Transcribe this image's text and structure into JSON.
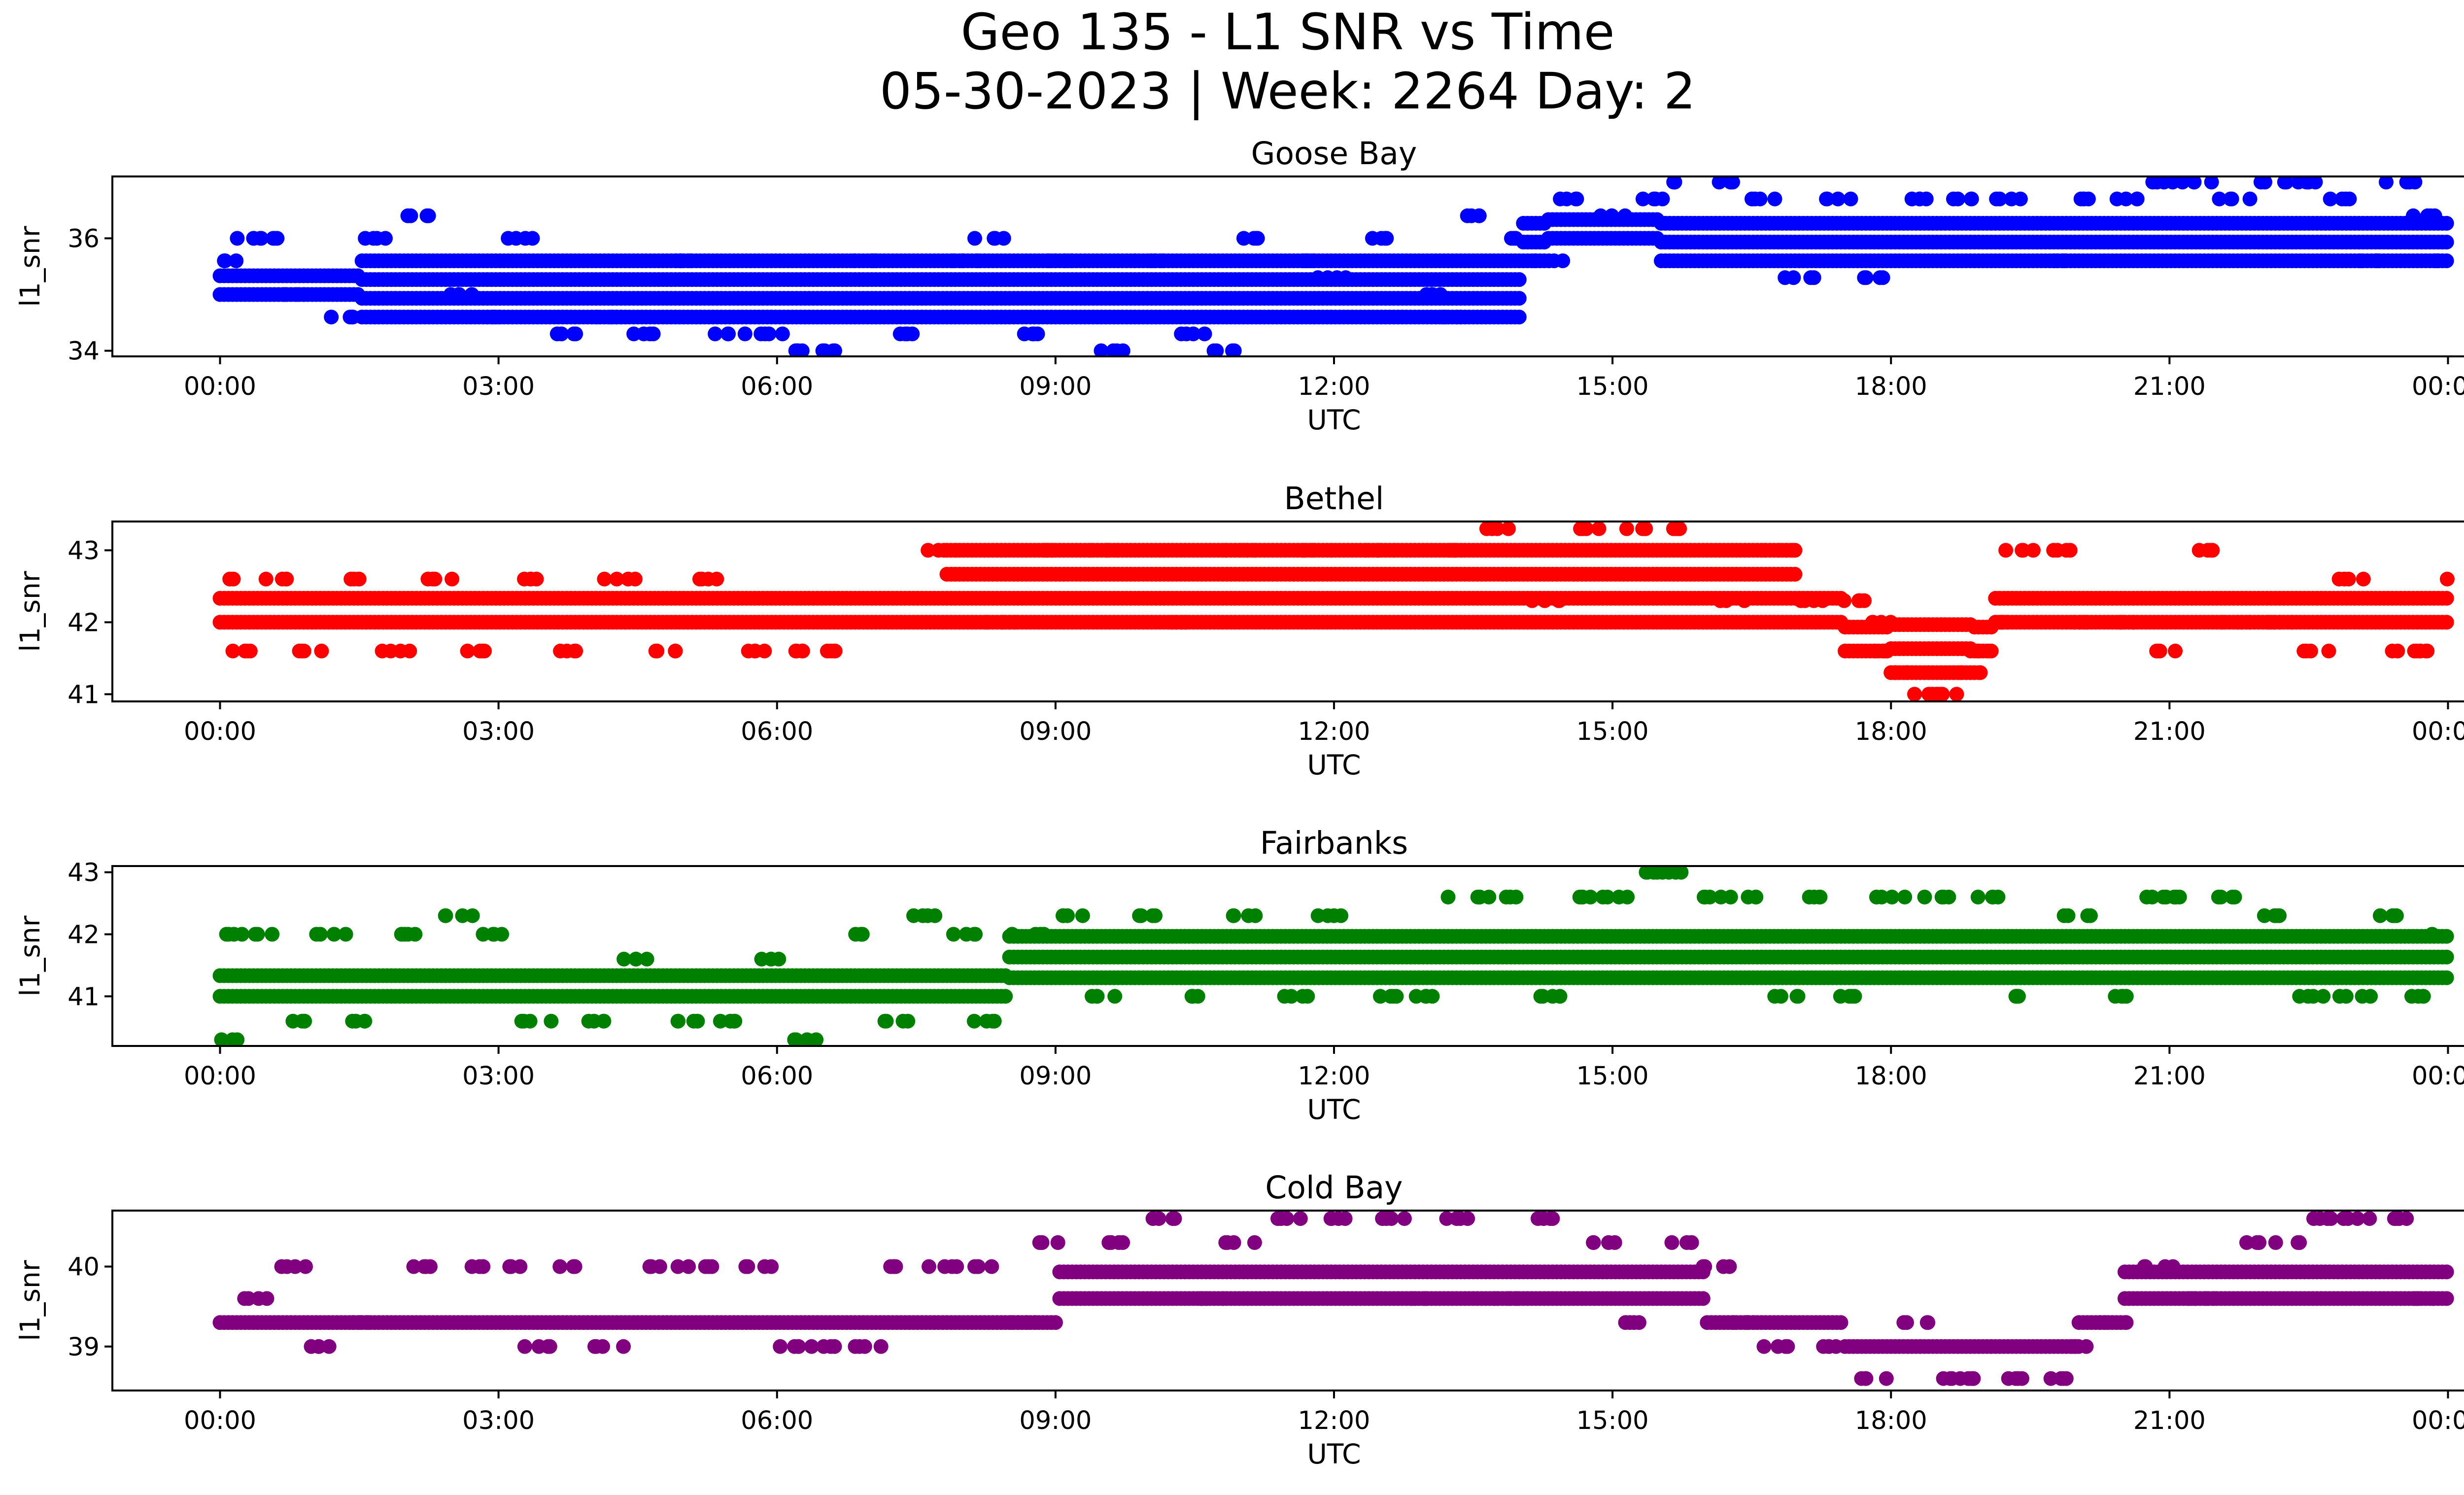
{
  "figure": {
    "title_line1": "Geo 135 - L1 SNR vs Time",
    "title_line2": "05-30-2023 | Week: 2264 Day: 2"
  },
  "chart_data": [
    {
      "type": "scatter",
      "title": "Goose Bay",
      "xlabel": "UTC",
      "ylabel": "l1_snr",
      "color": "#0000ff",
      "xlim_hours": [
        -1.16,
        25.16
      ],
      "ylim": [
        33.9,
        37.1
      ],
      "yticks": [
        34,
        36
      ],
      "xtick_labels": [
        "00:00",
        "03:00",
        "06:00",
        "09:00",
        "12:00",
        "15:00",
        "18:00",
        "21:00",
        "00:00"
      ],
      "series": [
        {
          "values": [
            [
              0,
              35.6
            ],
            [
              0.3,
              36
            ],
            [
              0.5,
              36
            ],
            [
              0.8,
              35
            ],
            [
              1.3,
              34.6
            ],
            [
              1.7,
              36
            ],
            [
              2.1,
              36.4
            ],
            [
              2.6,
              35
            ],
            [
              3.0,
              34.6
            ],
            [
              3.2,
              36
            ],
            [
              3.7,
              34.3
            ],
            [
              4.2,
              34.6
            ],
            [
              4.6,
              34.3
            ],
            [
              5.0,
              35.6
            ],
            [
              5.5,
              34.3
            ],
            [
              6.0,
              34.3
            ],
            [
              6.3,
              34
            ],
            [
              6.5,
              34
            ],
            [
              7.0,
              35.6
            ],
            [
              7.4,
              34.3
            ],
            [
              8.0,
              35.6
            ],
            [
              8.3,
              36
            ],
            [
              8.7,
              34.3
            ],
            [
              9.0,
              35.6
            ],
            [
              9.6,
              34
            ],
            [
              10.0,
              35.6
            ],
            [
              10.5,
              34.3
            ],
            [
              10.8,
              34
            ],
            [
              11.2,
              36
            ],
            [
              11.6,
              35.6
            ],
            [
              12.0,
              35.3
            ],
            [
              12.5,
              36
            ],
            [
              13.0,
              35
            ],
            [
              13.3,
              34.6
            ],
            [
              13.5,
              36.4
            ],
            [
              14.0,
              36
            ],
            [
              14.3,
              35.6
            ],
            [
              14.5,
              36.7
            ],
            [
              15.0,
              36.4
            ],
            [
              15.5,
              36.7
            ],
            [
              15.8,
              37
            ],
            [
              16.2,
              37
            ],
            [
              16.6,
              36.7
            ],
            [
              17.0,
              35.3
            ],
            [
              17.4,
              36.7
            ],
            [
              17.8,
              35.3
            ],
            [
              18.3,
              36.7
            ],
            [
              18.8,
              36.7
            ],
            [
              19.3,
              36.7
            ],
            [
              19.8,
              35.6
            ],
            [
              20.1,
              36.7
            ],
            [
              20.5,
              36.7
            ],
            [
              20.9,
              37
            ],
            [
              21.3,
              37
            ],
            [
              21.7,
              36.7
            ],
            [
              22.1,
              37
            ],
            [
              22.4,
              37
            ],
            [
              22.8,
              36.7
            ],
            [
              23.2,
              35.6
            ],
            [
              23.5,
              37
            ],
            [
              23.7,
              36.4
            ],
            [
              24.0,
              35.6
            ]
          ],
          "band": [
            34.3,
            36.0,
            35.3,
            36.4
          ]
        }
      ]
    },
    {
      "type": "scatter",
      "title": "Bethel",
      "xlabel": "UTC",
      "ylabel": "l1_snr",
      "color": "#ff0000",
      "xlim_hours": [
        -1.16,
        25.16
      ],
      "ylim": [
        40.9,
        43.4
      ],
      "yticks": [
        41,
        42,
        43
      ],
      "xtick_labels": [
        "00:00",
        "03:00",
        "06:00",
        "09:00",
        "12:00",
        "15:00",
        "18:00",
        "21:00",
        "00:00"
      ],
      "series": [
        {
          "values": [
            [
              0,
              42.6
            ],
            [
              0.2,
              41.6
            ],
            [
              0.6,
              42.6
            ],
            [
              1.0,
              41.6
            ],
            [
              1.5,
              42.6
            ],
            [
              1.9,
              41.6
            ],
            [
              2.4,
              42.6
            ],
            [
              2.8,
              41.6
            ],
            [
              3.3,
              42.6
            ],
            [
              3.8,
              41.6
            ],
            [
              4.3,
              42.6
            ],
            [
              4.8,
              41.6
            ],
            [
              5.2,
              42.6
            ],
            [
              5.7,
              41.6
            ],
            [
              6.2,
              41.6
            ],
            [
              6.7,
              41.6
            ],
            [
              7.8,
              43
            ],
            [
              8.4,
              42
            ],
            [
              8.8,
              43
            ],
            [
              9.5,
              43
            ],
            [
              10.3,
              42
            ],
            [
              11.0,
              43
            ],
            [
              11.8,
              43
            ],
            [
              12.5,
              43
            ],
            [
              13.2,
              43
            ],
            [
              13.8,
              43.3
            ],
            [
              14.3,
              42.3
            ],
            [
              14.8,
              43.3
            ],
            [
              15.3,
              43.3
            ],
            [
              15.8,
              43.3
            ],
            [
              16.3,
              42.3
            ],
            [
              16.8,
              43
            ],
            [
              17.2,
              42.3
            ],
            [
              17.6,
              42.3
            ],
            [
              17.9,
              42
            ],
            [
              18.0,
              41.6
            ],
            [
              18.2,
              41.3
            ],
            [
              18.4,
              41
            ],
            [
              18.6,
              41
            ],
            [
              18.8,
              41.3
            ],
            [
              19.0,
              41.6
            ],
            [
              19.2,
              42
            ],
            [
              19.4,
              43
            ],
            [
              19.8,
              43
            ],
            [
              20.1,
              42
            ],
            [
              20.5,
              42
            ],
            [
              20.9,
              41.6
            ],
            [
              21.3,
              43
            ],
            [
              21.7,
              42
            ],
            [
              22.2,
              42
            ],
            [
              22.6,
              41.6
            ],
            [
              23.0,
              42.6
            ],
            [
              23.5,
              41.6
            ],
            [
              23.8,
              41.6
            ],
            [
              24.0,
              42.6
            ]
          ],
          "band": [
            42.0,
            42.6,
            42.3,
            43.0
          ]
        }
      ]
    },
    {
      "type": "scatter",
      "title": "Fairbanks",
      "xlabel": "UTC",
      "ylabel": "l1_snr",
      "color": "#008000",
      "xlim_hours": [
        -1.16,
        25.16
      ],
      "ylim": [
        40.2,
        43.1
      ],
      "yticks": [
        41,
        42,
        43
      ],
      "xtick_labels": [
        "00:00",
        "03:00",
        "06:00",
        "09:00",
        "12:00",
        "15:00",
        "18:00",
        "21:00",
        "00:00"
      ],
      "series": [
        {
          "values": [
            [
              0,
              42
            ],
            [
              0.1,
              40.3
            ],
            [
              0.4,
              42
            ],
            [
              0.8,
              40.6
            ],
            [
              1.2,
              42
            ],
            [
              1.6,
              40.6
            ],
            [
              2.0,
              42
            ],
            [
              2.6,
              42.3
            ],
            [
              3.0,
              42
            ],
            [
              3.4,
              40.6
            ],
            [
              4.0,
              40.6
            ],
            [
              4.5,
              41.6
            ],
            [
              5.0,
              40.6
            ],
            [
              5.5,
              40.6
            ],
            [
              6.0,
              41.6
            ],
            [
              6.3,
              40.3
            ],
            [
              6.8,
              42
            ],
            [
              7.3,
              40.6
            ],
            [
              7.6,
              42.3
            ],
            [
              8.0,
              42
            ],
            [
              8.2,
              40.6
            ],
            [
              8.7,
              42
            ],
            [
              9.2,
              42.3
            ],
            [
              9.5,
              41
            ],
            [
              10.0,
              42.3
            ],
            [
              10.5,
              41
            ],
            [
              11.0,
              42.3
            ],
            [
              11.6,
              41
            ],
            [
              12.0,
              42.3
            ],
            [
              12.5,
              41
            ],
            [
              13.0,
              41
            ],
            [
              13.4,
              42.6
            ],
            [
              13.8,
              42.6
            ],
            [
              14.3,
              41
            ],
            [
              14.6,
              42.6
            ],
            [
              15.0,
              42.6
            ],
            [
              15.4,
              43
            ],
            [
              15.6,
              43
            ],
            [
              16.0,
              42.6
            ],
            [
              16.4,
              42.6
            ],
            [
              16.9,
              41
            ],
            [
              17.2,
              42.6
            ],
            [
              17.6,
              41
            ],
            [
              18.0,
              42.6
            ],
            [
              18.5,
              42.6
            ],
            [
              19.0,
              42.6
            ],
            [
              19.4,
              41
            ],
            [
              20.0,
              42.3
            ],
            [
              20.4,
              41
            ],
            [
              20.8,
              42.6
            ],
            [
              21.2,
              42.6
            ],
            [
              21.6,
              42.6
            ],
            [
              22.1,
              42.3
            ],
            [
              22.5,
              41
            ],
            [
              23.0,
              41
            ],
            [
              23.3,
              42.3
            ],
            [
              23.6,
              41
            ],
            [
              24.0,
              42
            ]
          ],
          "band": [
            41.0,
            41.6,
            41.3,
            42.0
          ]
        }
      ]
    },
    {
      "type": "scatter",
      "title": "Cold Bay",
      "xlabel": "UTC",
      "ylabel": "l1_snr",
      "color": "#800080",
      "xlim_hours": [
        -1.16,
        25.16
      ],
      "ylim": [
        38.45,
        40.7
      ],
      "yticks": [
        39,
        40
      ],
      "xtick_labels": [
        "00:00",
        "03:00",
        "06:00",
        "09:00",
        "12:00",
        "15:00",
        "18:00",
        "21:00",
        "00:00"
      ],
      "series": [
        {
          "values": [
            [
              0,
              40
            ],
            [
              0.4,
              39.6
            ],
            [
              0.8,
              40
            ],
            [
              1.1,
              39
            ],
            [
              1.6,
              39.3
            ],
            [
              2.2,
              40
            ],
            [
              2.8,
              40
            ],
            [
              3.2,
              40
            ],
            [
              3.4,
              39
            ],
            [
              3.8,
              40
            ],
            [
              4.2,
              39
            ],
            [
              4.8,
              40
            ],
            [
              5.2,
              40
            ],
            [
              5.8,
              40
            ],
            [
              6.2,
              39
            ],
            [
              6.5,
              39
            ],
            [
              7.0,
              39
            ],
            [
              7.2,
              40
            ],
            [
              7.8,
              40
            ],
            [
              8.3,
              40
            ],
            [
              8.7,
              39.3
            ],
            [
              9.0,
              40.3
            ],
            [
              9.6,
              40.3
            ],
            [
              10.2,
              40.6
            ],
            [
              10.7,
              39.6
            ],
            [
              11.0,
              40.3
            ],
            [
              11.5,
              40.6
            ],
            [
              12.0,
              40.6
            ],
            [
              12.6,
              40.6
            ],
            [
              13.0,
              39.6
            ],
            [
              13.3,
              40.6
            ],
            [
              13.8,
              39.6
            ],
            [
              14.3,
              40.6
            ],
            [
              14.9,
              40.3
            ],
            [
              15.3,
              39.3
            ],
            [
              15.7,
              40.3
            ],
            [
              16.1,
              40
            ],
            [
              16.4,
              39.3
            ],
            [
              16.8,
              39
            ],
            [
              17.3,
              39
            ],
            [
              17.8,
              38.6
            ],
            [
              18.3,
              39.3
            ],
            [
              18.6,
              38.6
            ],
            [
              19.0,
              38.6
            ],
            [
              19.4,
              38.6
            ],
            [
              19.8,
              38.6
            ],
            [
              20.1,
              39
            ],
            [
              20.4,
              39.3
            ],
            [
              20.9,
              40
            ],
            [
              21.3,
              39.6
            ],
            [
              21.8,
              40.3
            ],
            [
              22.3,
              40.3
            ],
            [
              22.7,
              40.6
            ],
            [
              23.0,
              40.6
            ],
            [
              23.4,
              40.6
            ],
            [
              23.7,
              39.6
            ],
            [
              24.0,
              40
            ]
          ],
          "band": [
            39.3,
            39.6,
            39.6,
            40.0
          ]
        }
      ]
    }
  ]
}
